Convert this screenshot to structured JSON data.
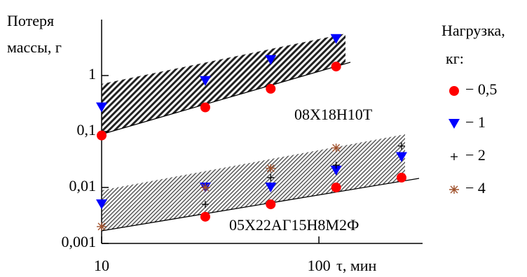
{
  "chart_data": {
    "type": "scatter",
    "ylabel": [
      "Потеря",
      "массы, г"
    ],
    "xlabel": "τ, мин",
    "legend_title": [
      "Нагрузка,",
      "кг:"
    ],
    "annotations": [
      "08Х18Н10Т",
      "05Х22АГ15Н8М2Ф"
    ],
    "xlog": true,
    "ylog": true,
    "xlim": [
      10,
      300
    ],
    "ylim": [
      0.001,
      10
    ],
    "xticks": [
      10,
      100
    ],
    "yticks": [
      {
        "value": 0.001,
        "label": "0,001"
      },
      {
        "value": 0.01,
        "label": "0,01"
      },
      {
        "value": 0.1,
        "label": "0,1"
      },
      1
    ],
    "legend": "right",
    "series": [
      {
        "name": "− 0,5",
        "color": "#ff0000",
        "marker": "circle",
        "x": [
          10,
          30,
          60,
          120,
          30,
          60,
          120,
          240
        ],
        "values": [
          0.085,
          0.27,
          0.58,
          1.45,
          0.003,
          0.005,
          0.01,
          0.015
        ]
      },
      {
        "name": "− 1",
        "color": "#0000ff",
        "marker": "triangle",
        "x": [
          10,
          30,
          60,
          120,
          10,
          30,
          60,
          120,
          240
        ],
        "values": [
          0.27,
          0.8,
          1.9,
          4.5,
          0.005,
          0.01,
          0.01,
          0.02,
          0.035
        ]
      },
      {
        "name": "− 2",
        "color": "#000000",
        "marker": "plus",
        "x": [
          30,
          30,
          60,
          120,
          240
        ],
        "values": [
          0.005,
          0.01,
          0.015,
          0.025,
          0.055
        ]
      },
      {
        "name": "− 4",
        "color": "#a0522d",
        "marker": "star",
        "x": [
          10,
          30,
          60,
          120
        ],
        "values": [
          0.002,
          0.01,
          0.022,
          0.051
        ]
      }
    ]
  }
}
